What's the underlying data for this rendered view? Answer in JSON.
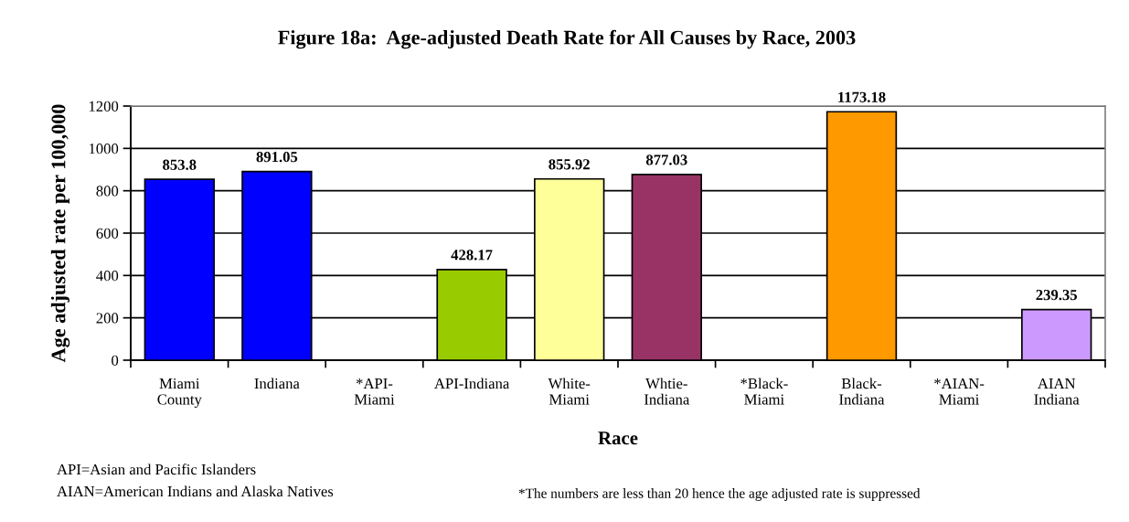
{
  "chart_data": {
    "type": "bar",
    "title": "Figure 18a:  Age-adjusted Death Rate for All Causes by Race, 2003",
    "xlabel": "Race",
    "ylabel": "Age adjusted rate per 100,000",
    "categories": [
      "Miami\nCounty",
      "Indiana",
      "*API-\nMiami",
      "API-Indiana",
      "White-\nMiami",
      "Whtie-\nIndiana",
      "*Black-\nMiami",
      "Black-\nIndiana",
      "*AIAN-\nMiami",
      "AIAN\nIndiana"
    ],
    "values": [
      853.8,
      891.05,
      null,
      428.17,
      855.92,
      877.03,
      null,
      1173.18,
      null,
      239.35
    ],
    "colors": [
      "#0000ff",
      "#0000ff",
      "#99cc00",
      "#99cc00",
      "#ffff99",
      "#993366",
      "#ff9900",
      "#ff9900",
      "#cc99ff",
      "#cc99ff"
    ],
    "ylim": [
      0,
      1200
    ],
    "yticks": [
      0,
      200,
      400,
      600,
      800,
      1000,
      1200
    ],
    "grid": "y",
    "data_labels": true,
    "legend": false,
    "annotations": [
      "API=Asian and Pacific Islanders",
      "AIAN=American Indians and Alaska Natives",
      "*The numbers are less than 20 hence the age adjusted rate is suppressed"
    ]
  }
}
